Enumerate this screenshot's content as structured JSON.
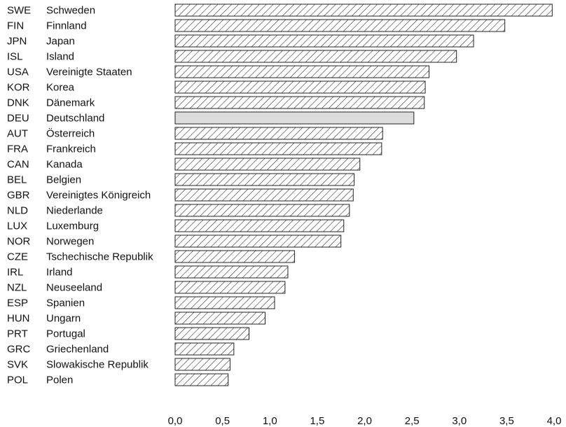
{
  "chart_data": {
    "type": "bar",
    "orientation": "horizontal",
    "title": "",
    "xlabel": "",
    "ylabel": "",
    "xlim": [
      0,
      4.0
    ],
    "ticks": [
      "0,0",
      "0,5",
      "1,0",
      "1,5",
      "2,0",
      "2,5",
      "3,0",
      "3,5",
      "4,0"
    ],
    "tick_values": [
      0,
      0.5,
      1.0,
      1.5,
      2.0,
      2.5,
      3.0,
      3.5,
      4.0
    ],
    "grid": false,
    "highlight": "DEU",
    "colors": {
      "bar_fill": "#ffffff",
      "hatch": "#222222",
      "highlight_fill": "#dcdcdc",
      "stroke": "#222222"
    },
    "categories": [
      {
        "code": "SWE",
        "name": "Schweden",
        "value": 3.98
      },
      {
        "code": "FIN",
        "name": "Finnland",
        "value": 3.48
      },
      {
        "code": "JPN",
        "name": "Japan",
        "value": 3.15
      },
      {
        "code": "ISL",
        "name": "Island",
        "value": 2.97
      },
      {
        "code": "USA",
        "name": "Vereinigte Staaten",
        "value": 2.68
      },
      {
        "code": "KOR",
        "name": "Korea",
        "value": 2.64
      },
      {
        "code": "DNK",
        "name": "Dänemark",
        "value": 2.63
      },
      {
        "code": "DEU",
        "name": "Deutschland",
        "value": 2.52
      },
      {
        "code": "AUT",
        "name": "Österreich",
        "value": 2.19
      },
      {
        "code": "FRA",
        "name": "Frankreich",
        "value": 2.18
      },
      {
        "code": "CAN",
        "name": "Kanada",
        "value": 1.95
      },
      {
        "code": "BEL",
        "name": "Belgien",
        "value": 1.89
      },
      {
        "code": "GBR",
        "name": "Vereinigtes Königreich",
        "value": 1.88
      },
      {
        "code": "NLD",
        "name": "Niederlande",
        "value": 1.84
      },
      {
        "code": "LUX",
        "name": "Luxemburg",
        "value": 1.78
      },
      {
        "code": "NOR",
        "name": "Norwegen",
        "value": 1.75
      },
      {
        "code": "CZE",
        "name": "Tschechische Republik",
        "value": 1.26
      },
      {
        "code": "IRL",
        "name": "Irland",
        "value": 1.19
      },
      {
        "code": "NZL",
        "name": "Neuseeland",
        "value": 1.16
      },
      {
        "code": "ESP",
        "name": "Spanien",
        "value": 1.05
      },
      {
        "code": "HUN",
        "name": "Ungarn",
        "value": 0.95
      },
      {
        "code": "PRT",
        "name": "Portugal",
        "value": 0.78
      },
      {
        "code": "GRC",
        "name": "Griechenland",
        "value": 0.62
      },
      {
        "code": "SVK",
        "name": "Slowakische Republik",
        "value": 0.58
      },
      {
        "code": "POL",
        "name": "Polen",
        "value": 0.56
      }
    ]
  }
}
